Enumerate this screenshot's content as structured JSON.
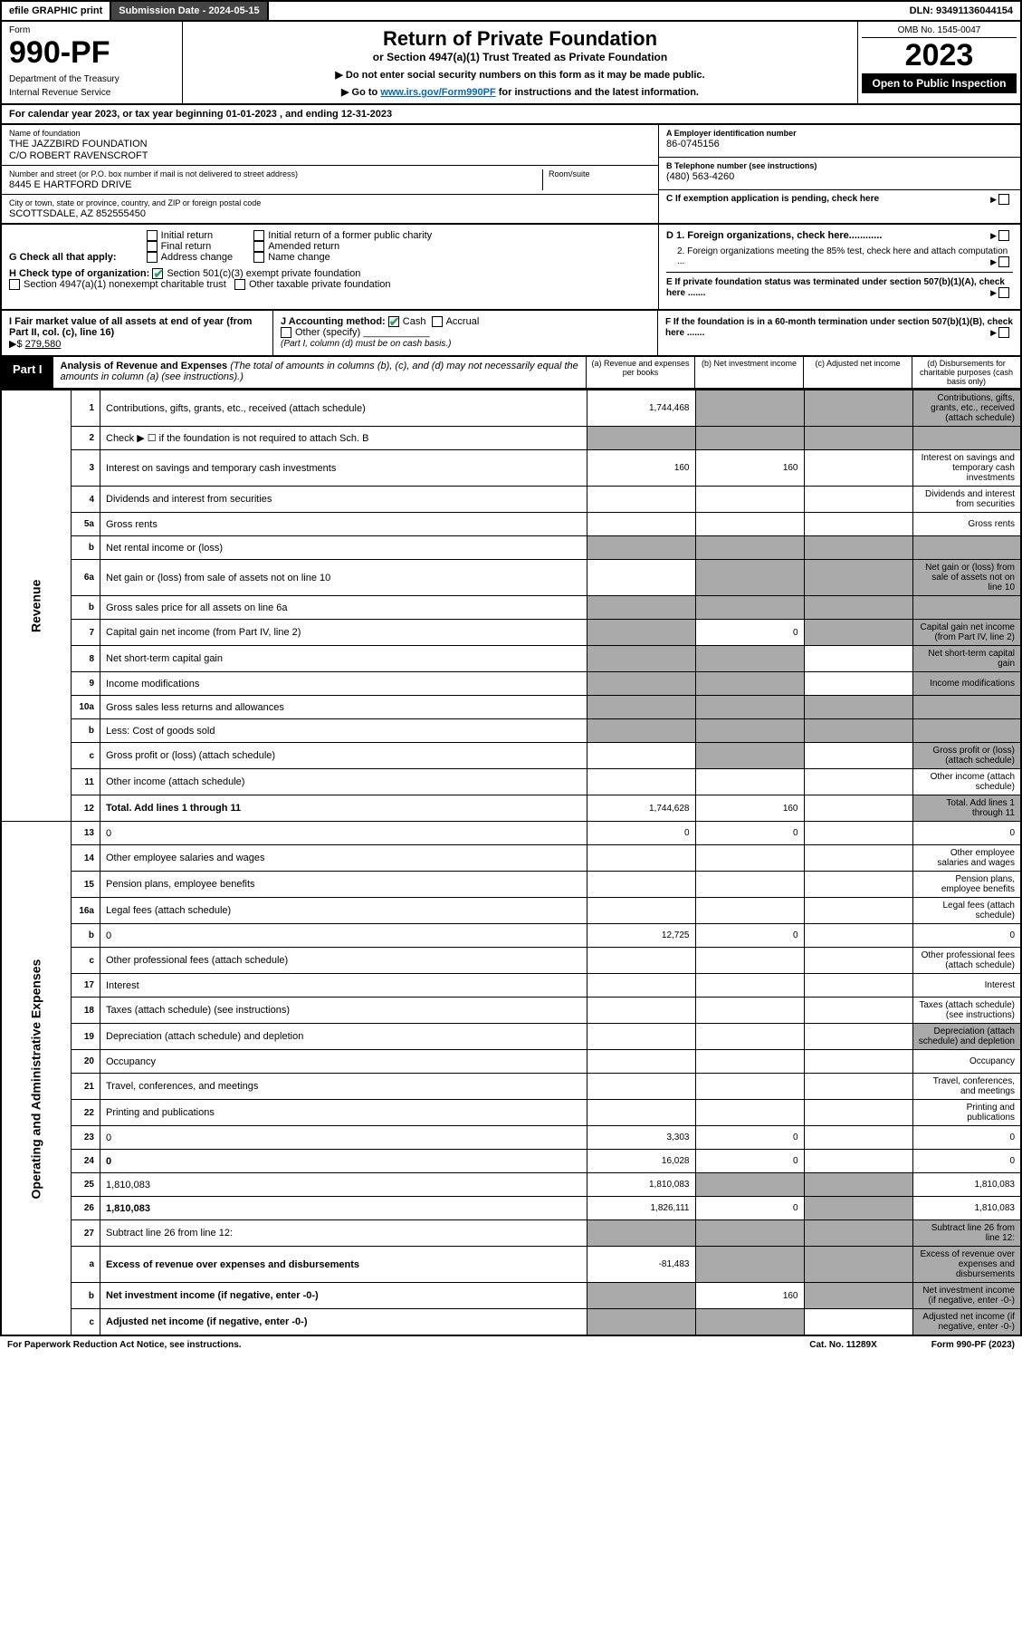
{
  "topbar": {
    "efile": "efile GRAPHIC print",
    "subdate": "Submission Date - 2024-05-15",
    "dln": "DLN: 93491136044154"
  },
  "hdr": {
    "form": "Form",
    "num": "990-PF",
    "dept": "Department of the Treasury",
    "irs": "Internal Revenue Service",
    "title": "Return of Private Foundation",
    "sub": "or Section 4947(a)(1) Trust Treated as Private Foundation",
    "note1": "▶ Do not enter social security numbers on this form as it may be made public.",
    "note2_pre": "▶ Go to ",
    "note2_link": "www.irs.gov/Form990PF",
    "note2_post": " for instructions and the latest information.",
    "omb": "OMB No. 1545-0047",
    "year": "2023",
    "open": "Open to Public Inspection"
  },
  "cy": {
    "pre": "For calendar year 2023, or tax year beginning ",
    "begin": "01-01-2023",
    "mid": " , and ending ",
    "end": "12-31-2023"
  },
  "info": {
    "name_lbl": "Name of foundation",
    "name1": "THE JAZZBIRD FOUNDATION",
    "name2": "C/O ROBERT RAVENSCROFT",
    "addr_lbl": "Number and street (or P.O. box number if mail is not delivered to street address)",
    "room_lbl": "Room/suite",
    "addr": "8445 E HARTFORD DRIVE",
    "city_lbl": "City or town, state or province, country, and ZIP or foreign postal code",
    "city": "SCOTTSDALE, AZ  852555450",
    "A_lbl": "A Employer identification number",
    "A_val": "86-0745156",
    "B_lbl": "B Telephone number (see instructions)",
    "B_val": "(480) 563-4260",
    "C_lbl": "C If exemption application is pending, check here",
    "D1": "D 1. Foreign organizations, check here............",
    "D2": "2. Foreign organizations meeting the 85% test, check here and attach computation ...",
    "E": "E  If private foundation status was terminated under section 507(b)(1)(A), check here .......",
    "F": "F  If the foundation is in a 60-month termination under section 507(b)(1)(B), check here ......."
  },
  "G": {
    "lbl": "G Check all that apply:",
    "items": [
      "Initial return",
      "Final return",
      "Address change",
      "Initial return of a former public charity",
      "Amended return",
      "Name change"
    ]
  },
  "H": {
    "lbl": "H Check type of organization:",
    "a": "Section 501(c)(3) exempt private foundation",
    "b": "Section 4947(a)(1) nonexempt charitable trust",
    "c": "Other taxable private foundation"
  },
  "I": {
    "lbl": "I Fair market value of all assets at end of year (from Part II, col. (c), line 16) ",
    "arrow": "▶$ ",
    "val": "279,580"
  },
  "J": {
    "lbl": "J Accounting method:",
    "cash": "Cash",
    "accrual": "Accrual",
    "other": "Other (specify)",
    "note": "(Part I, column (d) must be on cash basis.)"
  },
  "part1": {
    "tag": "Part I",
    "title": "Analysis of Revenue and Expenses",
    "note": " (The total of amounts in columns (b), (c), and (d) may not necessarily equal the amounts in column (a) (see instructions).)",
    "cols": {
      "a": "(a) Revenue and expenses per books",
      "b": "(b) Net investment income",
      "c": "(c) Adjusted net income",
      "d": "(d) Disbursements for charitable purposes (cash basis only)"
    }
  },
  "sides": {
    "rev": "Revenue",
    "exp": "Operating and Administrative Expenses"
  },
  "rows": [
    {
      "n": "1",
      "d": "Contributions, gifts, grants, etc., received (attach schedule)",
      "a": "1,744,468",
      "sb": true,
      "sc": true,
      "sd": true
    },
    {
      "n": "2",
      "d": "Check ▶ ☐ if the foundation is not required to attach Sch. B",
      "noabcd": true
    },
    {
      "n": "3",
      "d": "Interest on savings and temporary cash investments",
      "a": "160",
      "b": "160"
    },
    {
      "n": "4",
      "d": "Dividends and interest from securities"
    },
    {
      "n": "5a",
      "d": "Gross rents"
    },
    {
      "n": "b",
      "d": "Net rental income or (loss)",
      "noabcd": true
    },
    {
      "n": "6a",
      "d": "Net gain or (loss) from sale of assets not on line 10",
      "sb": true,
      "sc": true,
      "sd": true
    },
    {
      "n": "b",
      "d": "Gross sales price for all assets on line 6a",
      "noabcd": true
    },
    {
      "n": "7",
      "d": "Capital gain net income (from Part IV, line 2)",
      "b": "0",
      "sa": true,
      "sc": true,
      "sd": true
    },
    {
      "n": "8",
      "d": "Net short-term capital gain",
      "sa": true,
      "sb": true,
      "sd": true
    },
    {
      "n": "9",
      "d": "Income modifications",
      "sa": true,
      "sb": true,
      "sd": true
    },
    {
      "n": "10a",
      "d": "Gross sales less returns and allowances",
      "noabcd": true
    },
    {
      "n": "b",
      "d": "Less: Cost of goods sold",
      "noabcd": true
    },
    {
      "n": "c",
      "d": "Gross profit or (loss) (attach schedule)",
      "sb": true,
      "sd": true
    },
    {
      "n": "11",
      "d": "Other income (attach schedule)"
    },
    {
      "n": "12",
      "d": "Total. Add lines 1 through 11",
      "bold": true,
      "a": "1,744,628",
      "b": "160",
      "sd": true
    },
    {
      "n": "13",
      "d": "0",
      "a": "0",
      "b": "0"
    },
    {
      "n": "14",
      "d": "Other employee salaries and wages"
    },
    {
      "n": "15",
      "d": "Pension plans, employee benefits"
    },
    {
      "n": "16a",
      "d": "Legal fees (attach schedule)"
    },
    {
      "n": "b",
      "d": "0",
      "a": "12,725",
      "b": "0"
    },
    {
      "n": "c",
      "d": "Other professional fees (attach schedule)"
    },
    {
      "n": "17",
      "d": "Interest"
    },
    {
      "n": "18",
      "d": "Taxes (attach schedule) (see instructions)"
    },
    {
      "n": "19",
      "d": "Depreciation (attach schedule) and depletion",
      "sd": true
    },
    {
      "n": "20",
      "d": "Occupancy"
    },
    {
      "n": "21",
      "d": "Travel, conferences, and meetings"
    },
    {
      "n": "22",
      "d": "Printing and publications"
    },
    {
      "n": "23",
      "d": "0",
      "a": "3,303",
      "b": "0"
    },
    {
      "n": "24",
      "d": "0",
      "bold": true,
      "a": "16,028",
      "b": "0"
    },
    {
      "n": "25",
      "d": "1,810,083",
      "a": "1,810,083",
      "sb": true,
      "sc": true
    },
    {
      "n": "26",
      "d": "1,810,083",
      "bold": true,
      "a": "1,826,111",
      "b": "0",
      "sc": true
    },
    {
      "n": "27",
      "d": "Subtract line 26 from line 12:",
      "sa": true,
      "sb": true,
      "sc": true,
      "sd": true
    },
    {
      "n": "a",
      "d": "Excess of revenue over expenses and disbursements",
      "bold": true,
      "a": "-81,483",
      "sb": true,
      "sc": true,
      "sd": true
    },
    {
      "n": "b",
      "d": "Net investment income (if negative, enter -0-)",
      "bold": true,
      "b": "160",
      "sa": true,
      "sc": true,
      "sd": true
    },
    {
      "n": "c",
      "d": "Adjusted net income (if negative, enter -0-)",
      "bold": true,
      "sa": true,
      "sb": true,
      "sd": true
    }
  ],
  "ftr": {
    "l": "For Paperwork Reduction Act Notice, see instructions.",
    "m": "Cat. No. 11289X",
    "r": "Form 990-PF (2023)"
  }
}
